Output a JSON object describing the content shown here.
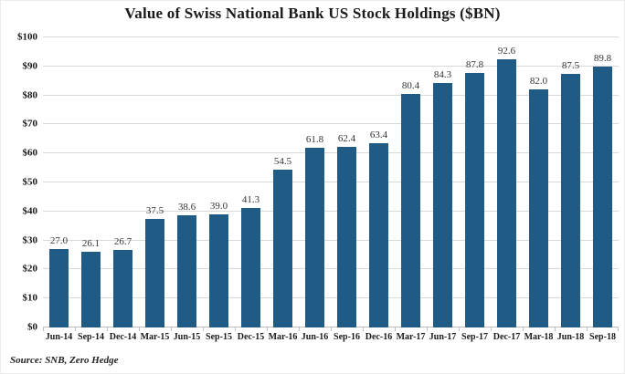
{
  "source": "Source: SNB, Zero Hedge",
  "chart_data": {
    "type": "bar",
    "title": "Value of Swiss National Bank US Stock Holdings ($BN)",
    "categories": [
      "Jun-14",
      "Sep-14",
      "Dec-14",
      "Mar-15",
      "Jun-15",
      "Sep-15",
      "Dec-15",
      "Mar-16",
      "Jun-16",
      "Sep-16",
      "Dec-16",
      "Mar-17",
      "Jun-17",
      "Sep-17",
      "Dec-17",
      "Mar-18",
      "Jun-18",
      "Sep-18"
    ],
    "values": [
      27.0,
      26.1,
      26.7,
      37.5,
      38.6,
      39.0,
      41.3,
      54.5,
      61.8,
      62.4,
      63.4,
      80.4,
      84.3,
      87.8,
      92.6,
      82.0,
      87.5,
      89.8
    ],
    "value_labels": [
      "27.0",
      "26.1",
      "26.7",
      "37.5",
      "38.6",
      "39.0",
      "41.3",
      "54.5",
      "61.8",
      "62.4",
      "63.4",
      "80.4",
      "84.3",
      "87.8",
      "92.6",
      "82.0",
      "87.5",
      "89.8"
    ],
    "xlabel": "",
    "ylabel": "",
    "ylim": [
      0,
      100
    ],
    "ytick_step": 10,
    "ytick_prefix": "$",
    "grid": true,
    "legend": "none",
    "bar_color": "#1F5B84",
    "gridline_color": "#D9D9D9",
    "axis_line_color": "#BFBFBF",
    "text_color": "#1A1A1A"
  }
}
